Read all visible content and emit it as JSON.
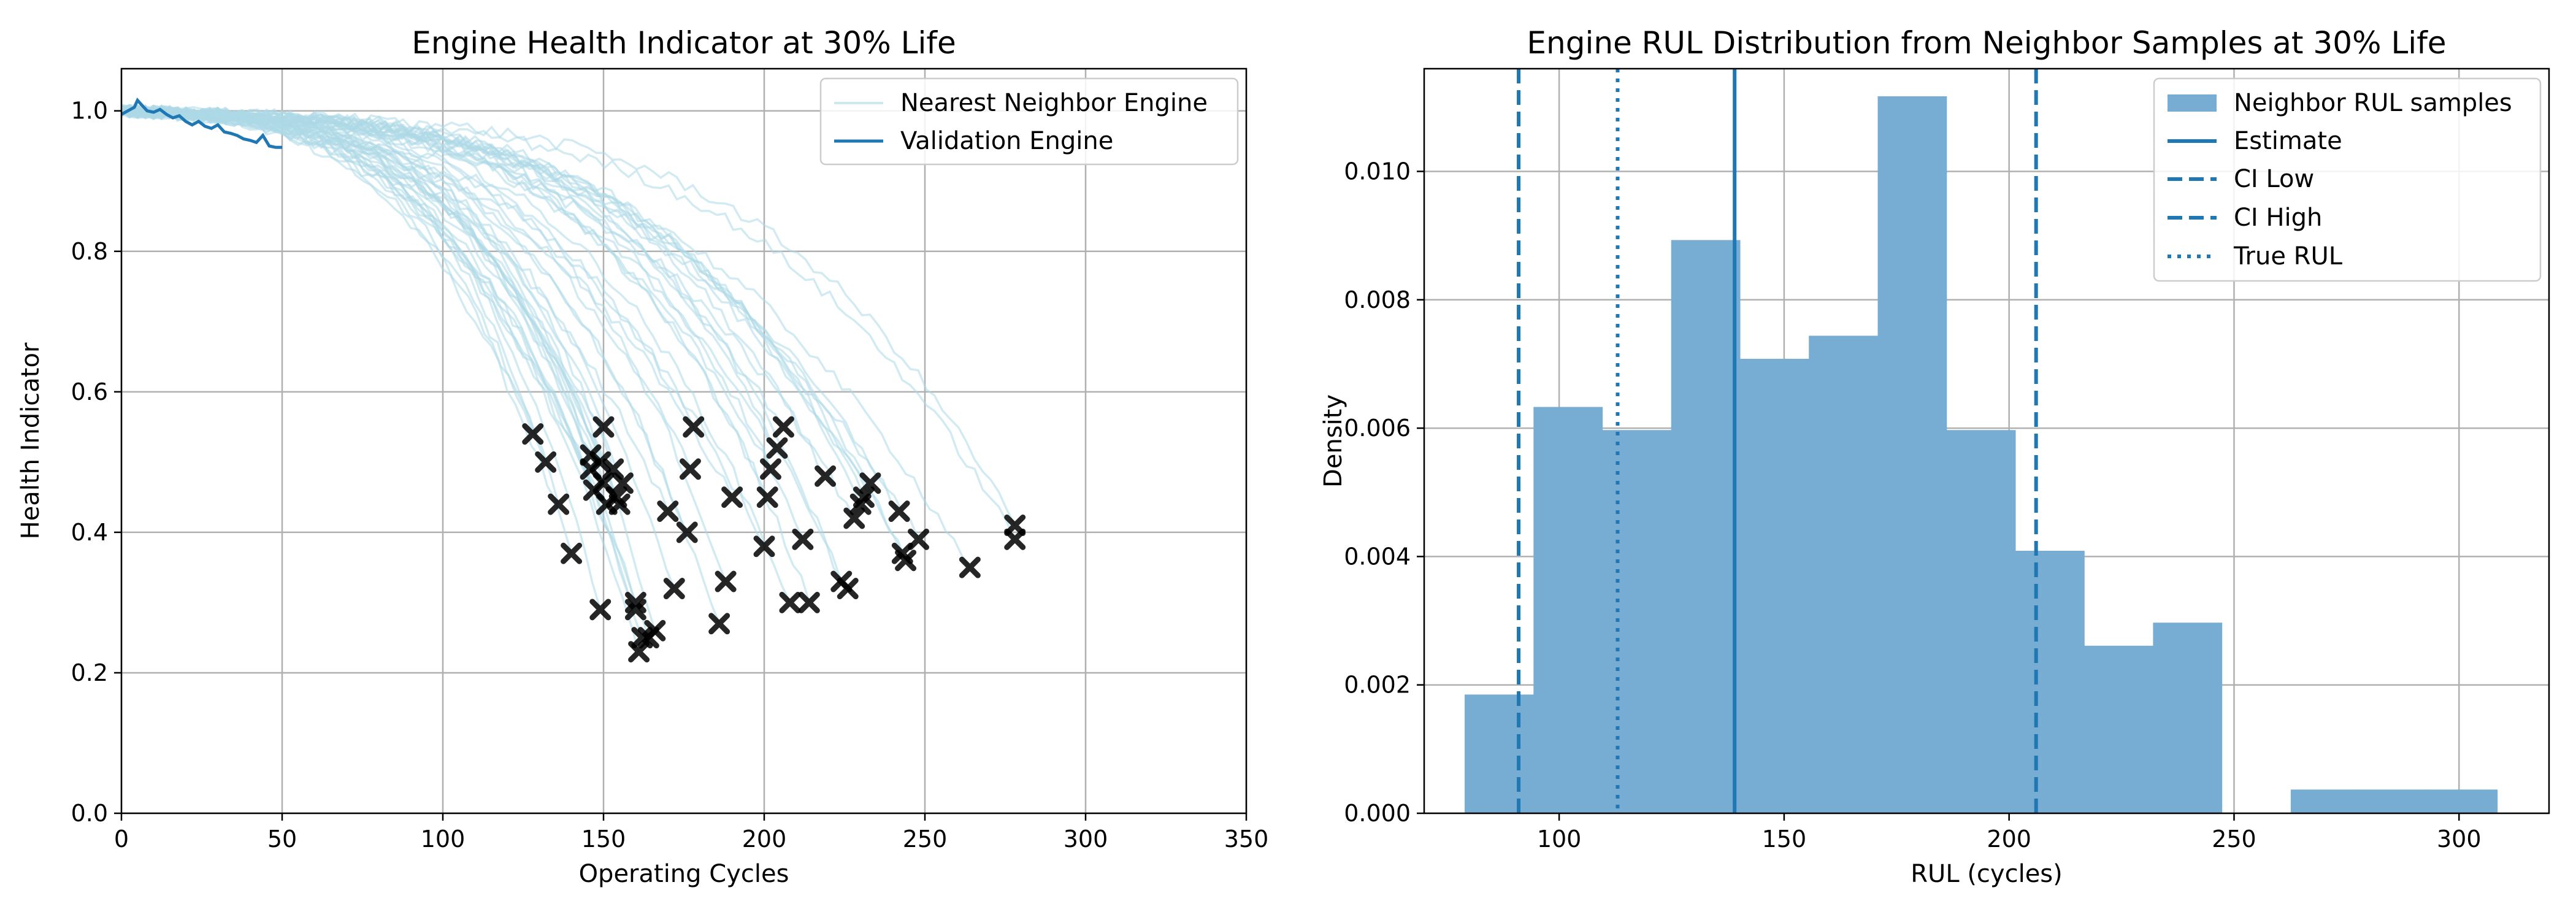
{
  "chart_data": [
    {
      "type": "line",
      "title": "Engine Health Indicator at 30% Life",
      "xlabel": "Operating Cycles",
      "ylabel": "Health Indicator",
      "xlim": [
        0,
        350
      ],
      "ylim": [
        0,
        1.06
      ],
      "xticks": [
        "0",
        "50",
        "100",
        "150",
        "200",
        "250",
        "300",
        "350"
      ],
      "yticks": [
        "0.0",
        "0.2",
        "0.4",
        "0.6",
        "0.8",
        "1.0"
      ],
      "grid": true,
      "legend_position": "top-right",
      "legend": [
        "Nearest Neighbor Engine",
        "Validation Engine"
      ],
      "colors": {
        "neighbor": "#add8e6",
        "validation": "#1f77b4",
        "endpoint": "#000000"
      },
      "validation_engine": {
        "name": "Validation Engine",
        "x": [
          0,
          2,
          4,
          5,
          6,
          8,
          10,
          12,
          14,
          16,
          18,
          20,
          22,
          24,
          26,
          28,
          30,
          32,
          34,
          36,
          38,
          40,
          42,
          44,
          46,
          48,
          50
        ],
        "y": [
          0.995,
          1.0,
          1.005,
          1.015,
          1.01,
          1.0,
          0.998,
          1.002,
          0.995,
          0.99,
          0.993,
          0.985,
          0.98,
          0.985,
          0.978,
          0.975,
          0.98,
          0.97,
          0.968,
          0.965,
          0.96,
          0.958,
          0.955,
          0.965,
          0.95,
          0.948,
          0.948
        ]
      },
      "neighbor_end_cycles": [
        128,
        132,
        136,
        140,
        146,
        146,
        147,
        149,
        150,
        151,
        153,
        154,
        156,
        160,
        161,
        162,
        164,
        166,
        170,
        172,
        176,
        178,
        186,
        188,
        190,
        200,
        201,
        202,
        204,
        206,
        208,
        212,
        214,
        219,
        224,
        226,
        228,
        230,
        231,
        233,
        242,
        243,
        244,
        248,
        264,
        278,
        278,
        150,
        149,
        160,
        177,
        155
      ],
      "neighbor_end_values": [
        0.54,
        0.5,
        0.44,
        0.37,
        0.51,
        0.49,
        0.46,
        0.29,
        0.55,
        0.44,
        0.49,
        0.45,
        0.47,
        0.3,
        0.23,
        0.25,
        0.25,
        0.26,
        0.43,
        0.32,
        0.4,
        0.55,
        0.27,
        0.33,
        0.45,
        0.38,
        0.45,
        0.49,
        0.52,
        0.55,
        0.3,
        0.39,
        0.3,
        0.48,
        0.33,
        0.32,
        0.42,
        0.44,
        0.45,
        0.47,
        0.43,
        0.37,
        0.36,
        0.39,
        0.35,
        0.41,
        0.39,
        0.47,
        0.5,
        0.29,
        0.49,
        0.44
      ]
    },
    {
      "type": "bar",
      "title": "Engine RUL Distribution from Neighbor Samples at 30% Life",
      "xlabel": "RUL (cycles)",
      "ylabel": "Density",
      "xlim": [
        70,
        320
      ],
      "ylim": [
        0,
        0.0116
      ],
      "xticks": [
        "100",
        "150",
        "200",
        "250",
        "300"
      ],
      "yticks": [
        "0.000",
        "0.002",
        "0.004",
        "0.006",
        "0.008",
        "0.010"
      ],
      "grid": true,
      "legend_position": "top-right",
      "legend": [
        "Neighbor RUL samples",
        "Estimate",
        "CI Low",
        "CI High",
        "True RUL"
      ],
      "colors": {
        "bars": "#77acd3",
        "lines": "#1f77b4"
      },
      "bin_edges": [
        79,
        94.3,
        109.6,
        124.9,
        140.2,
        155.5,
        170.8,
        186.1,
        201.4,
        216.7,
        232,
        247.3,
        262.6,
        277.9,
        293.2,
        308.5
      ],
      "densities": [
        0.00185,
        0.00633,
        0.00597,
        0.00893,
        0.00708,
        0.00744,
        0.01117,
        0.00597,
        0.00409,
        0.00261,
        0.00297,
        0,
        0.00037,
        0.00037,
        0.00037
      ],
      "vlines": {
        "estimate": 139,
        "ci_low": 91,
        "ci_high": 206,
        "true_rul": 113
      }
    }
  ]
}
